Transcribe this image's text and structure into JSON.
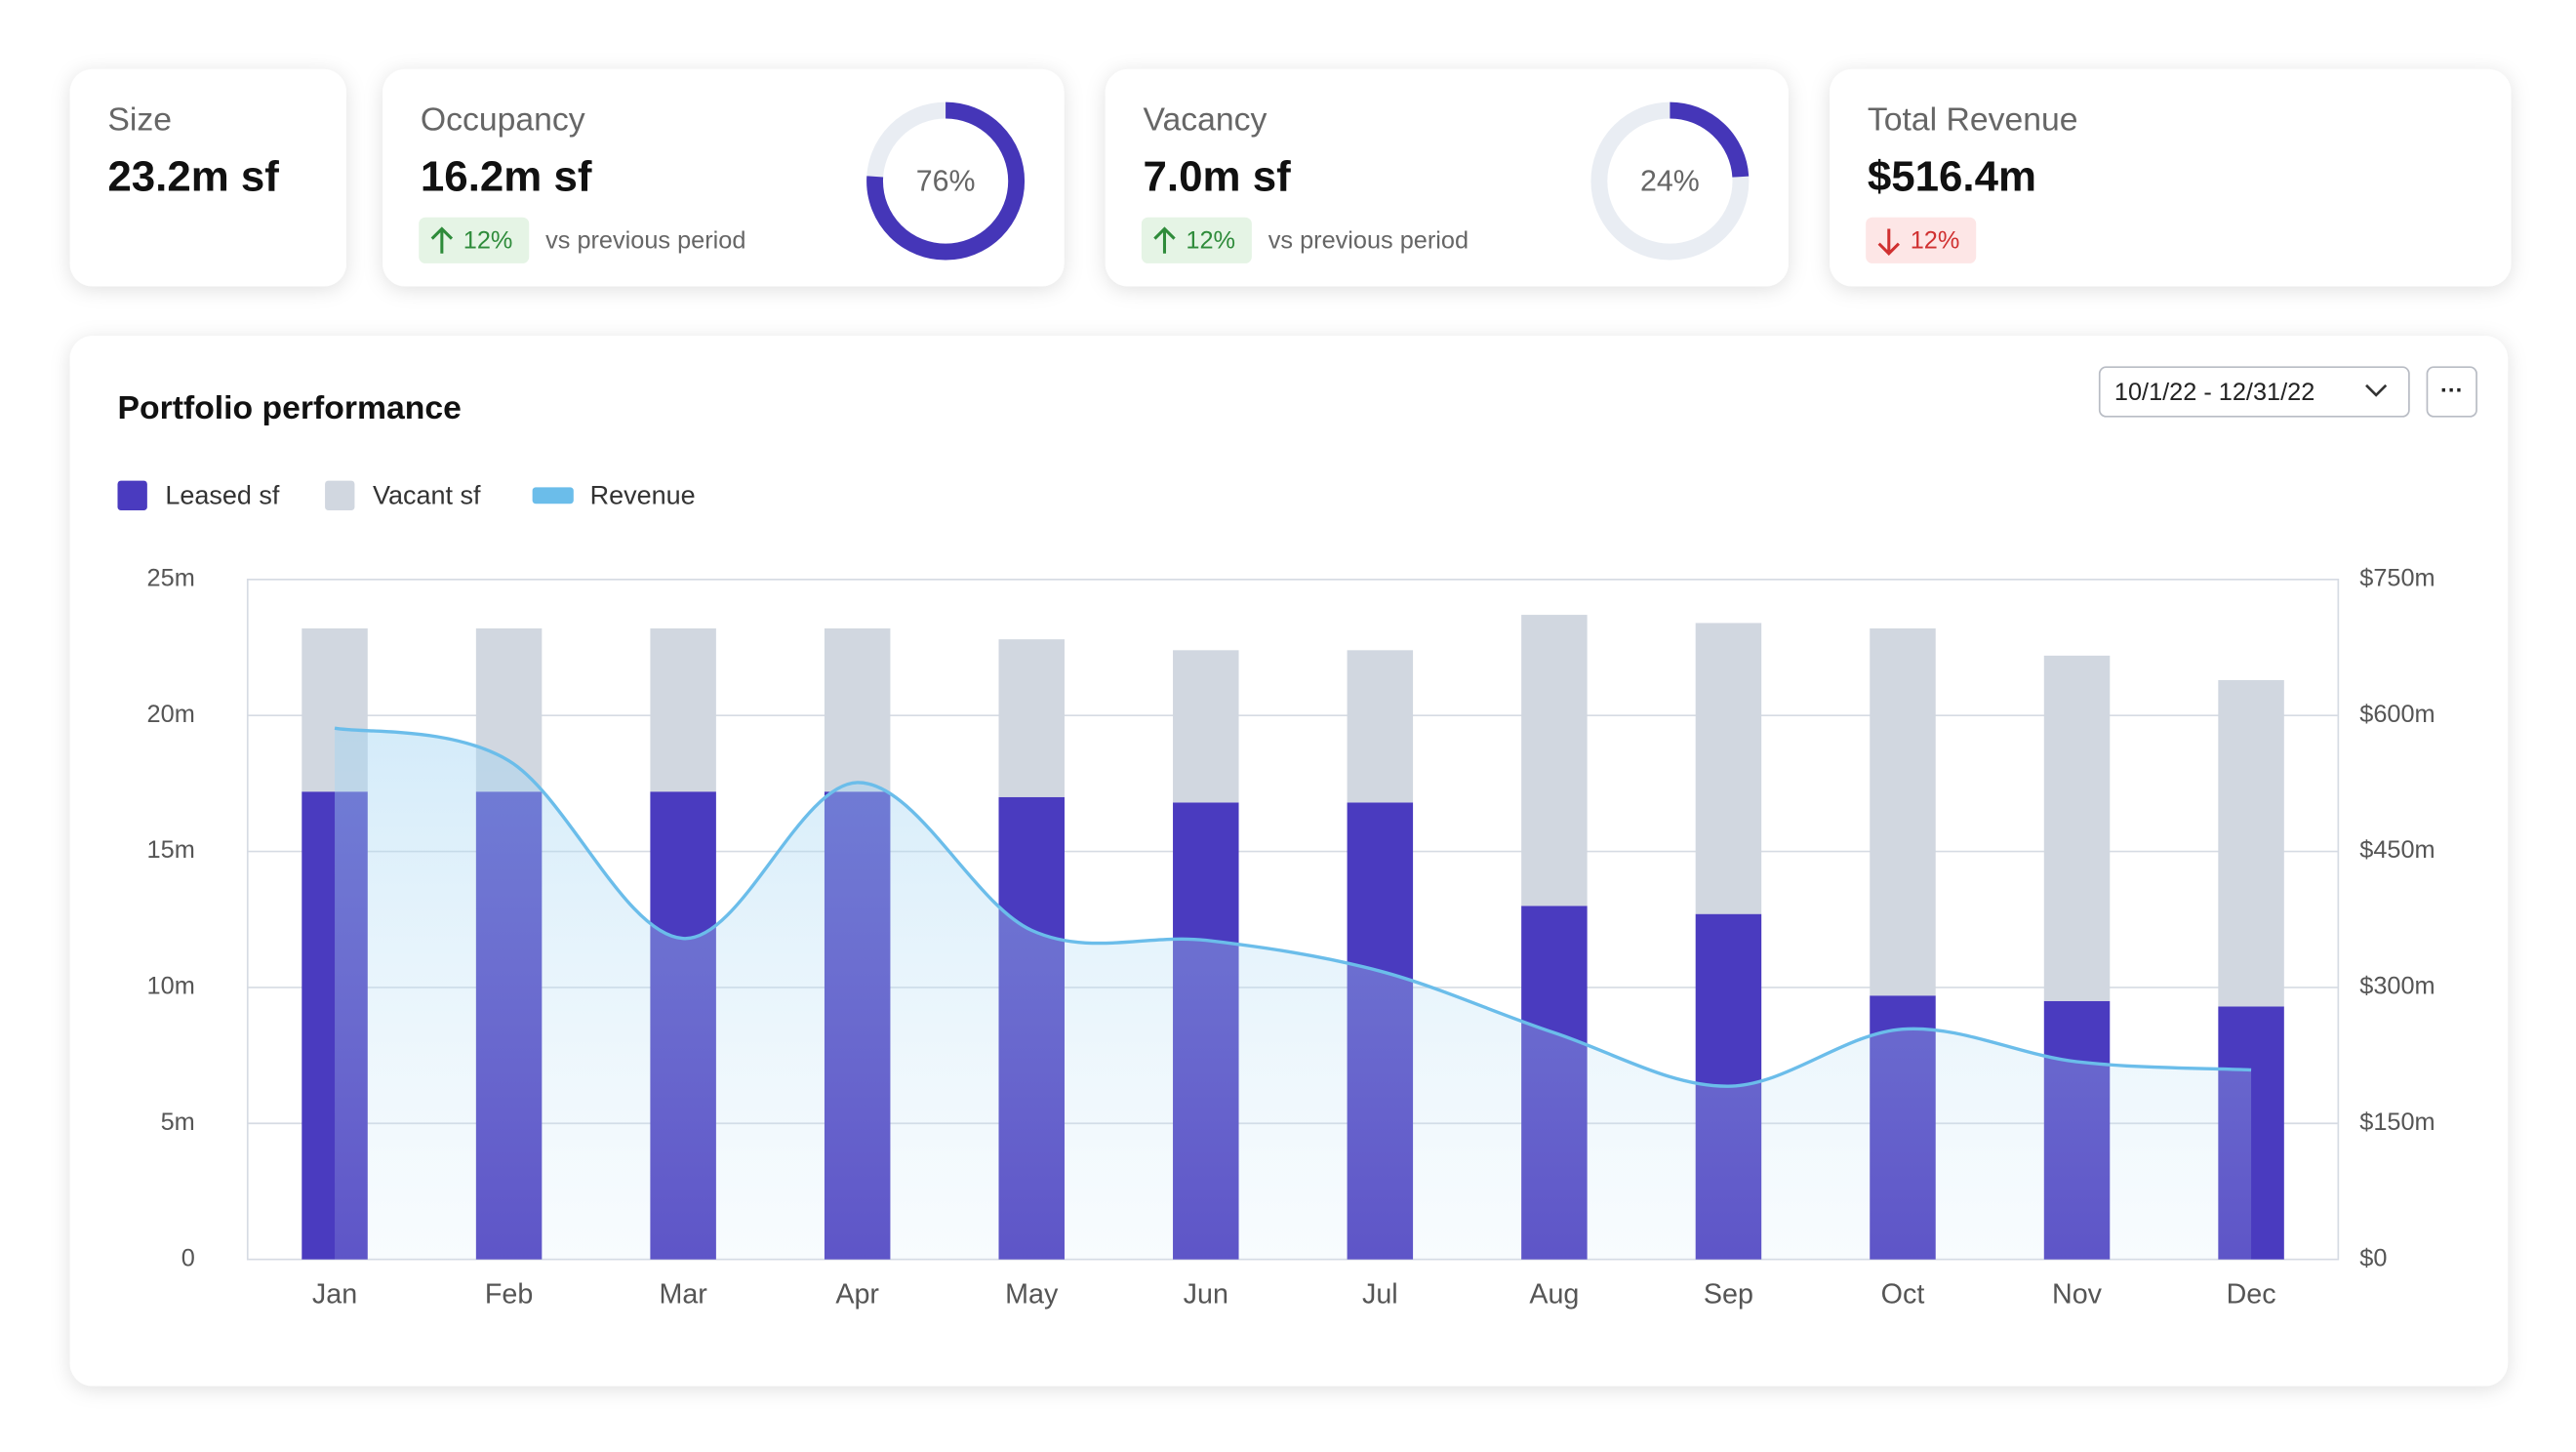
{
  "cards": [
    {
      "label": "Size",
      "value": "23.2m sf"
    },
    {
      "label": "Occupancy",
      "value": "16.2m sf",
      "change": "12%",
      "trend": "up",
      "note": "vs previous period",
      "donut": {
        "value": 76,
        "label": "76%"
      }
    },
    {
      "label": "Vacancy",
      "value": "7.0m sf",
      "change": "12%",
      "trend": "up",
      "note": "vs previous period",
      "donut": {
        "value": 24,
        "label": "24%"
      }
    },
    {
      "label": "Total Revenue",
      "value": "$516.4m",
      "change": "12%",
      "trend": "down"
    }
  ],
  "controls": {
    "date_range": "10/1/22 - 12/31/22",
    "menu": "···"
  },
  "chart_data": {
    "type": "bar",
    "stacked": true,
    "title": "Portfolio performance",
    "categories": [
      "Jan",
      "Feb",
      "Mar",
      "Apr",
      "May",
      "Jun",
      "Jul",
      "Aug",
      "Sep",
      "Oct",
      "Nov",
      "Dec"
    ],
    "series": [
      {
        "name": "Leased sf",
        "color": "#4a3bbf",
        "values": [
          17.2,
          17.2,
          17.2,
          17.2,
          17.0,
          16.8,
          16.8,
          13.0,
          12.7,
          9.7,
          9.5,
          9.3
        ]
      },
      {
        "name": "Vacant sf",
        "color": "#d1d7e0",
        "values": [
          6.0,
          6.0,
          6.0,
          6.0,
          5.8,
          5.6,
          5.6,
          10.7,
          10.7,
          13.5,
          12.7,
          12.0
        ]
      },
      {
        "name": "Revenue",
        "color": "#6bbdea",
        "type": "area",
        "axis": "y2",
        "values": [
          586,
          550,
          354,
          526,
          363,
          352,
          318,
          250,
          191,
          254,
          218,
          209
        ]
      }
    ],
    "ylim": [
      0,
      25
    ],
    "yticks": [
      0,
      {
        "value": 5,
        "label": "5m"
      },
      {
        "value": 10,
        "label": "10m"
      },
      {
        "value": 15,
        "label": "15m"
      },
      {
        "value": 20,
        "label": "20m"
      },
      {
        "value": 25,
        "label": "25m"
      }
    ],
    "y2lim": [
      0,
      750
    ],
    "y2ticks": [
      {
        "value": 0,
        "label": "$0"
      },
      {
        "value": 150,
        "label": "$150m"
      },
      {
        "value": 300,
        "label": "$300m"
      },
      {
        "value": 450,
        "label": "$450m"
      },
      {
        "value": 600,
        "label": "$600m"
      },
      {
        "value": 750,
        "label": "$750m"
      }
    ],
    "grid": true,
    "legend": "top-left"
  }
}
